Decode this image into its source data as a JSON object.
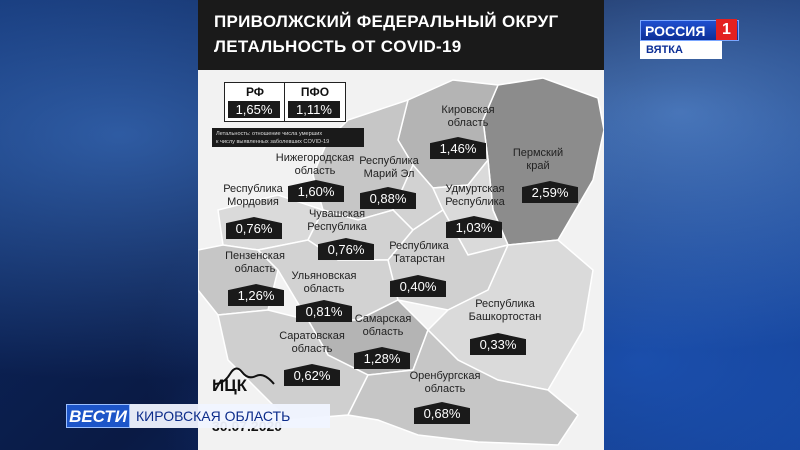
{
  "header": {
    "title_line1": "ПРИВОЛЖСКИЙ ФЕДЕРАЛЬНЫЙ ОКРУГ",
    "title_line2": "ЛЕТАЛЬНОСТЬ ОТ COVID-19"
  },
  "summary": {
    "rf_label": "РФ",
    "rf_value": "1,65%",
    "pfo_label": "ПФО",
    "pfo_value": "1,11%",
    "note_line1": "Летальность: отношение числа умерших",
    "note_line2": "к числу выявленных заболевших COVID-19"
  },
  "regions": [
    {
      "name1": "Кировская",
      "name2": "область",
      "value": "1,46%"
    },
    {
      "name1": "Пермский",
      "name2": "край",
      "value": "2,59%"
    },
    {
      "name1": "Нижегородская",
      "name2": "область",
      "value": "1,60%"
    },
    {
      "name1": "Республика",
      "name2": "Марий Эл",
      "value": "0,88%"
    },
    {
      "name1": "Удмуртская",
      "name2": "Республика",
      "value": "1,03%"
    },
    {
      "name1": "Республика",
      "name2": "Мордовия",
      "value": "0,76%"
    },
    {
      "name1": "Чувашская",
      "name2": "Республика",
      "value": "0,76%"
    },
    {
      "name1": "Республика",
      "name2": "Татарстан",
      "value": "0,40%"
    },
    {
      "name1": "Пензенская",
      "name2": "область",
      "value": "1,26%"
    },
    {
      "name1": "Ульяновская",
      "name2": "область",
      "value": "0,81%"
    },
    {
      "name1": "Самарская",
      "name2": "область",
      "value": "1,28%"
    },
    {
      "name1": "Саратовская",
      "name2": "область",
      "value": "0,62%"
    },
    {
      "name1": "Республика",
      "name2": "Башкортостан",
      "value": "0,33%"
    },
    {
      "name1": "Оренбургская",
      "name2": "область",
      "value": "0,68%"
    }
  ],
  "logo": {
    "text": "ИЦК"
  },
  "date": "30.07.2020",
  "channel": {
    "name": "РОССИЯ",
    "number": "1",
    "region": "ВЯТКА"
  },
  "ticker": {
    "brand": "ВЕСТИ",
    "region": "КИРОВСКАЯ ОБЛАСТЬ"
  },
  "colors": {
    "dark_region": "#8c8c8c",
    "mid_region": "#b4b4b4",
    "light_region": "#d2d2d2",
    "badge": "#1a1a1a"
  }
}
